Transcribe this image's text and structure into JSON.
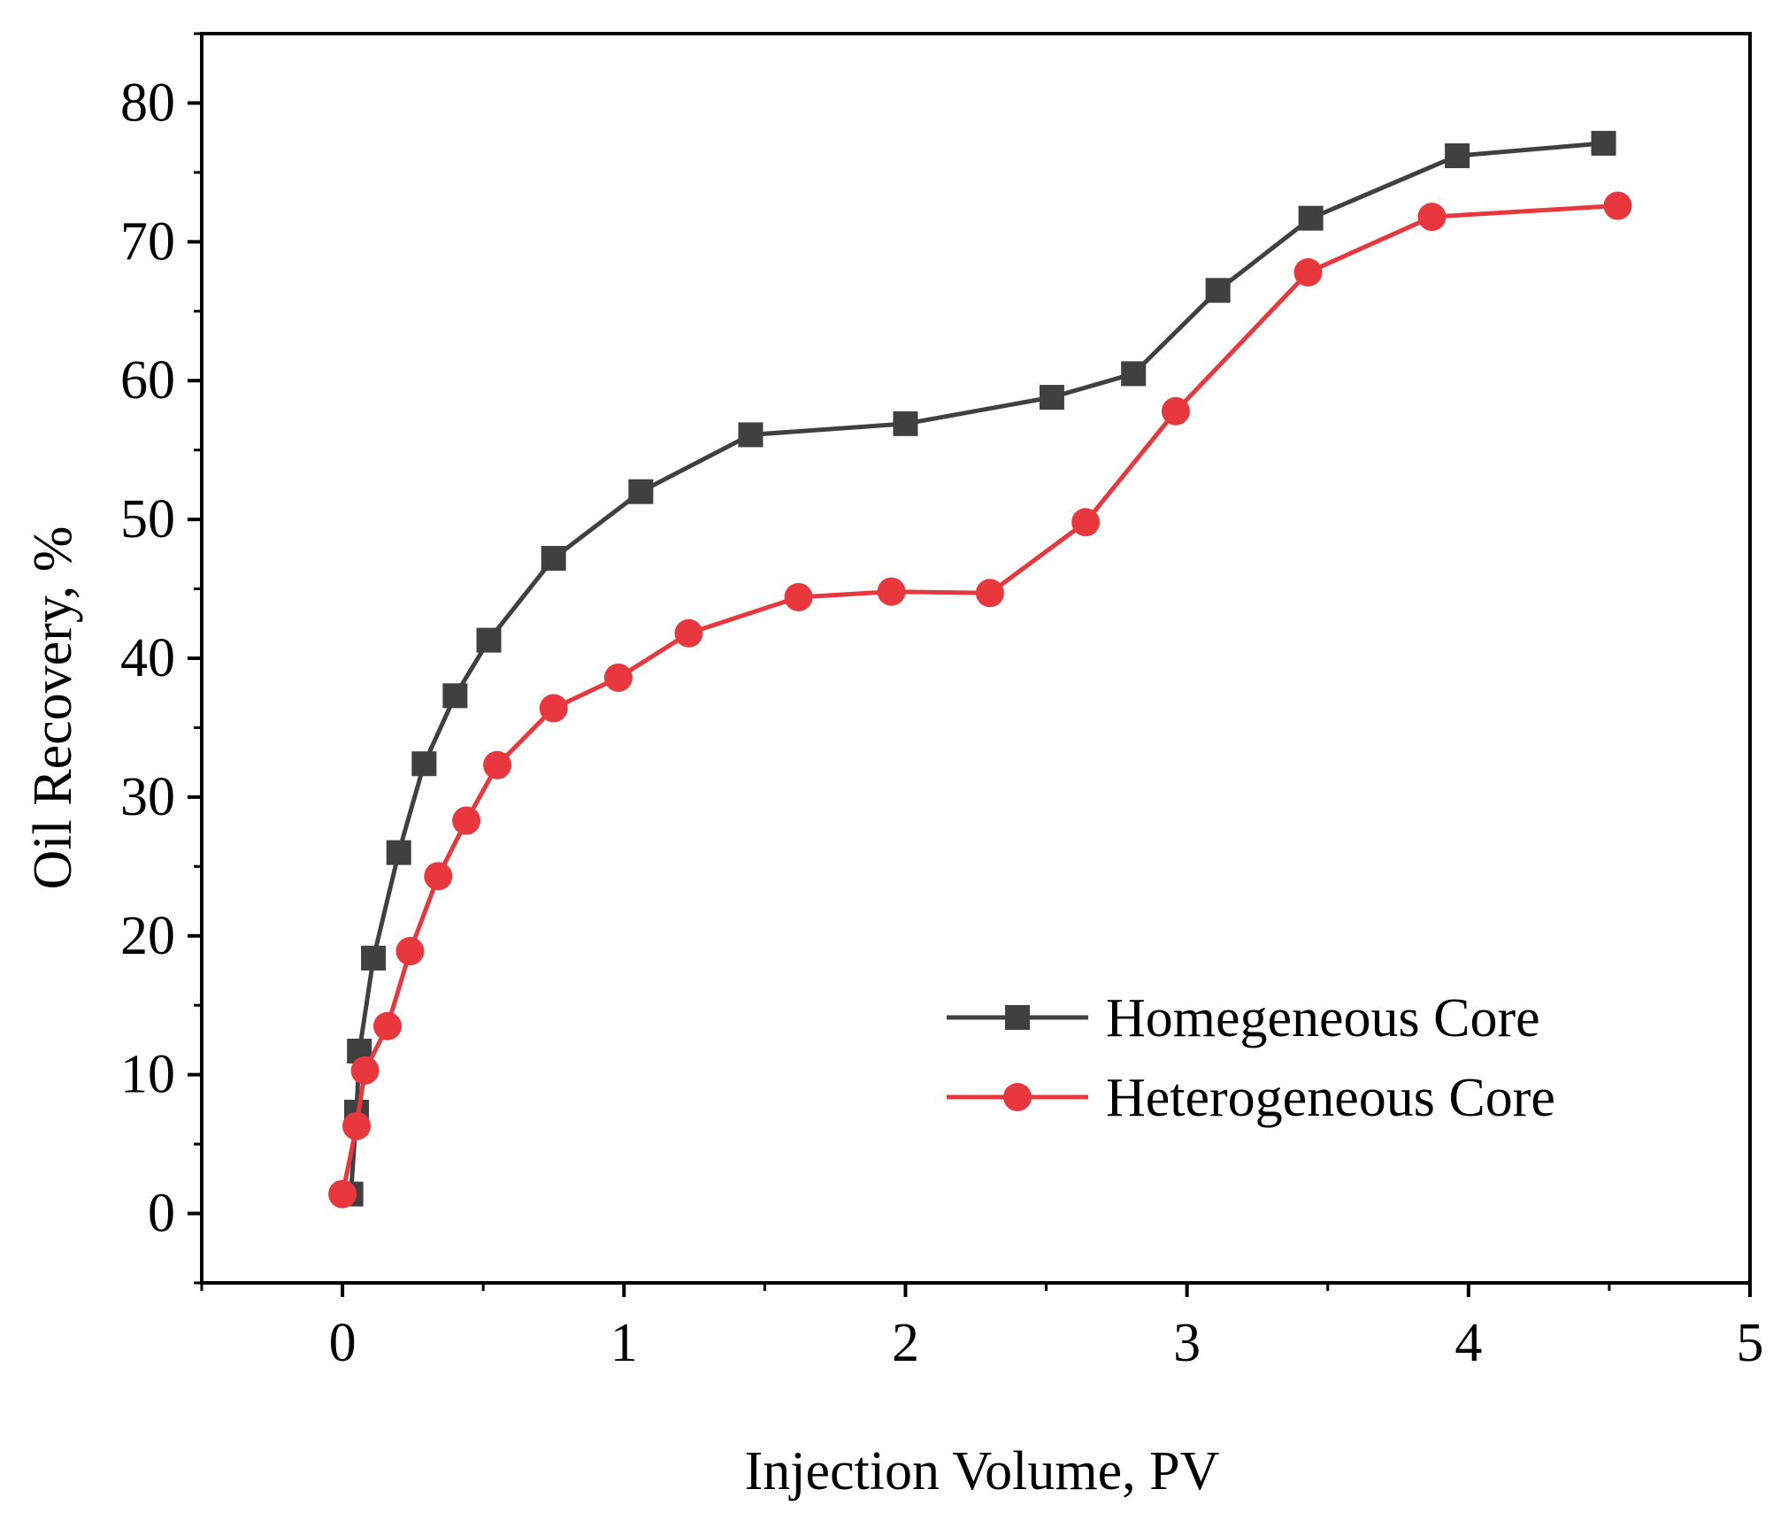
{
  "chart_data": {
    "type": "line",
    "title": "",
    "xlabel": "Injection Volume, PV",
    "ylabel": "Oil Recovery, %",
    "xlim": [
      -0.5,
      5
    ],
    "ylim": [
      -5,
      85
    ],
    "x_ticks": [
      0,
      1,
      2,
      3,
      4,
      5
    ],
    "x_tick_labels": [
      "0",
      "1",
      "2",
      "3",
      "4",
      "5"
    ],
    "y_ticks": [
      0,
      10,
      20,
      30,
      40,
      50,
      60,
      70,
      80
    ],
    "y_tick_labels": [
      "0",
      "10",
      "20",
      "30",
      "40",
      "50",
      "60",
      "70",
      "80"
    ],
    "grid": false,
    "legend_position": "bottom-right",
    "series": [
      {
        "name": "Homegeneous Core",
        "color": "#404040",
        "marker": "square",
        "x": [
          0.03,
          0.05,
          0.06,
          0.11,
          0.2,
          0.29,
          0.4,
          0.52,
          0.75,
          1.06,
          1.45,
          2.0,
          2.52,
          2.81,
          3.11,
          3.44,
          3.96,
          4.48
        ],
        "y": [
          1.4,
          7.3,
          11.7,
          18.4,
          26.0,
          32.4,
          37.3,
          41.3,
          47.2,
          52.0,
          56.1,
          56.9,
          58.8,
          60.5,
          66.5,
          71.7,
          76.2,
          77.1
        ]
      },
      {
        "name": "Heterogeneous Core",
        "color": "#e8383d",
        "marker": "circle",
        "x": [
          0.0,
          0.05,
          0.08,
          0.16,
          0.24,
          0.34,
          0.44,
          0.55,
          0.75,
          0.98,
          1.23,
          1.62,
          1.95,
          2.3,
          2.64,
          2.96,
          3.43,
          3.87,
          4.53
        ],
        "y": [
          1.4,
          6.3,
          10.3,
          13.5,
          18.9,
          24.3,
          28.3,
          32.3,
          36.4,
          38.6,
          41.8,
          44.4,
          44.8,
          44.7,
          49.8,
          57.8,
          67.8,
          71.8,
          72.6
        ]
      }
    ]
  }
}
